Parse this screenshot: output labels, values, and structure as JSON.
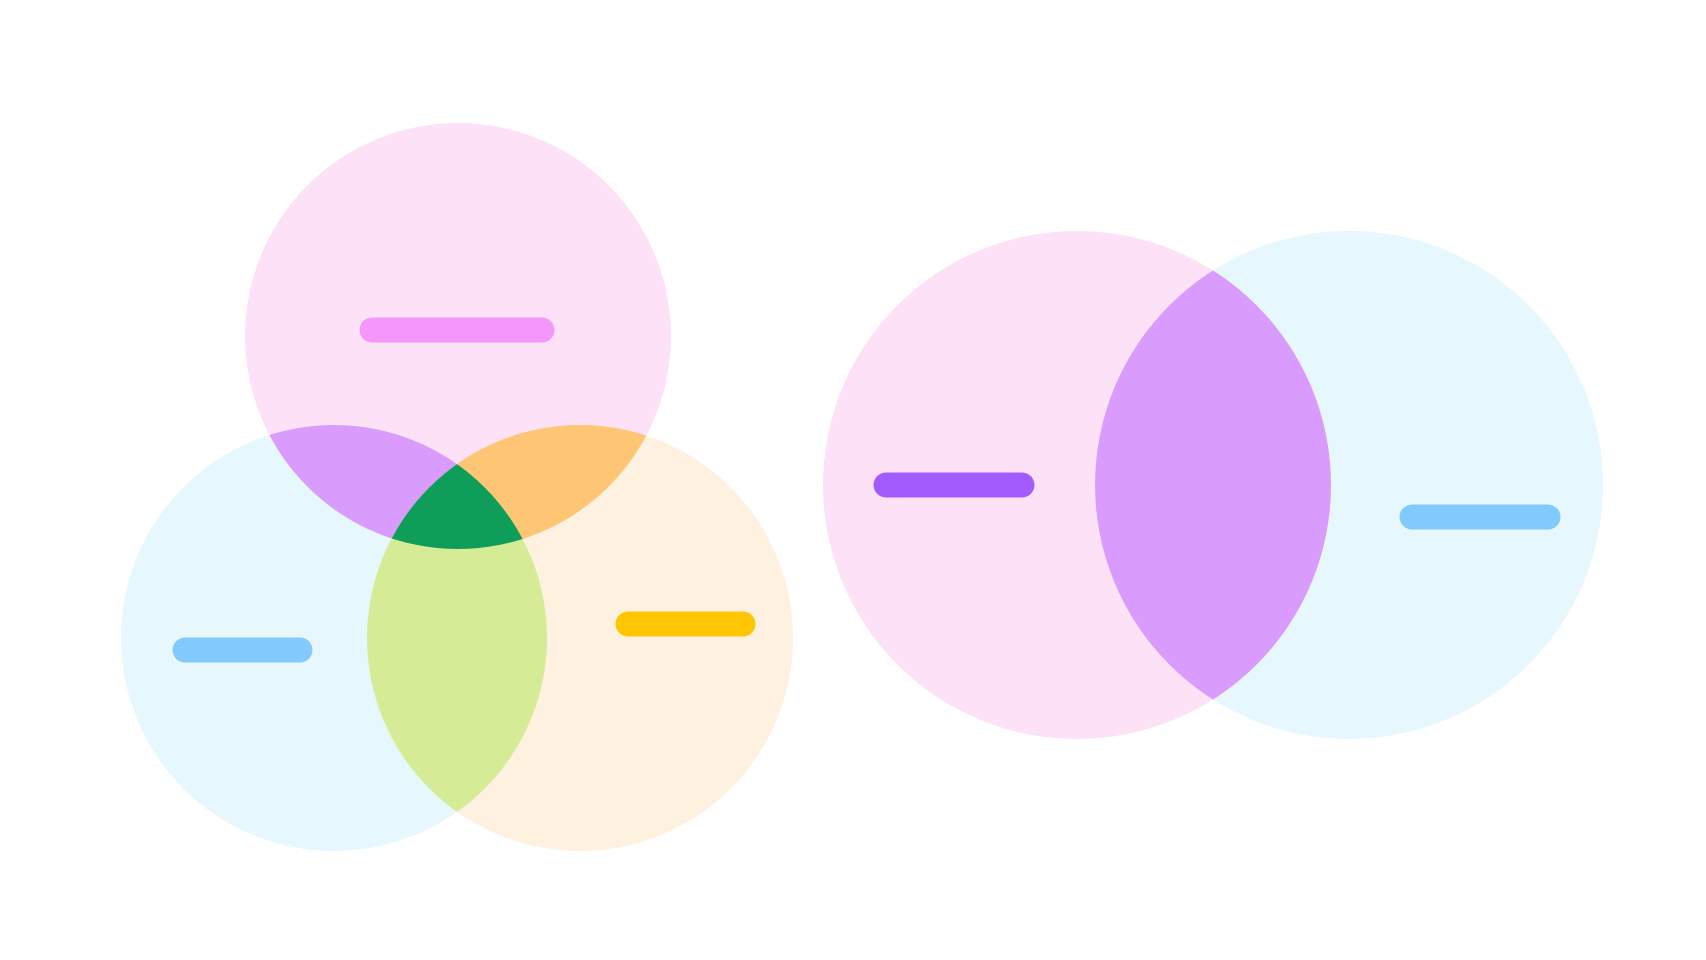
{
  "diagrams": [
    {
      "type": "venn",
      "sets": 3,
      "circles": [
        {
          "name": "top",
          "fill": "#FDE2F7"
        },
        {
          "name": "bottom-left",
          "fill": "#E6F7FD"
        },
        {
          "name": "bottom-right",
          "fill": "#FEF1DF"
        }
      ],
      "overlaps": {
        "top_left": "#D99CFD",
        "top_right": "#FEC575",
        "left_right": "#D5EB96",
        "all_three": "#0E9E5A"
      },
      "label_placeholders": [
        {
          "set": "top",
          "color": "#F496FA"
        },
        {
          "set": "bottom-left",
          "color": "#82C9FC"
        },
        {
          "set": "bottom-right",
          "color": "#FEC502"
        }
      ]
    },
    {
      "type": "venn",
      "sets": 2,
      "circles": [
        {
          "name": "left",
          "fill": "#FDE2F7"
        },
        {
          "name": "right",
          "fill": "#E6F7FD"
        }
      ],
      "overlaps": {
        "left_right": "#D99CFD"
      },
      "label_placeholders": [
        {
          "set": "left",
          "color": "#A45BFE"
        },
        {
          "set": "right",
          "color": "#82C9FC"
        }
      ]
    }
  ]
}
